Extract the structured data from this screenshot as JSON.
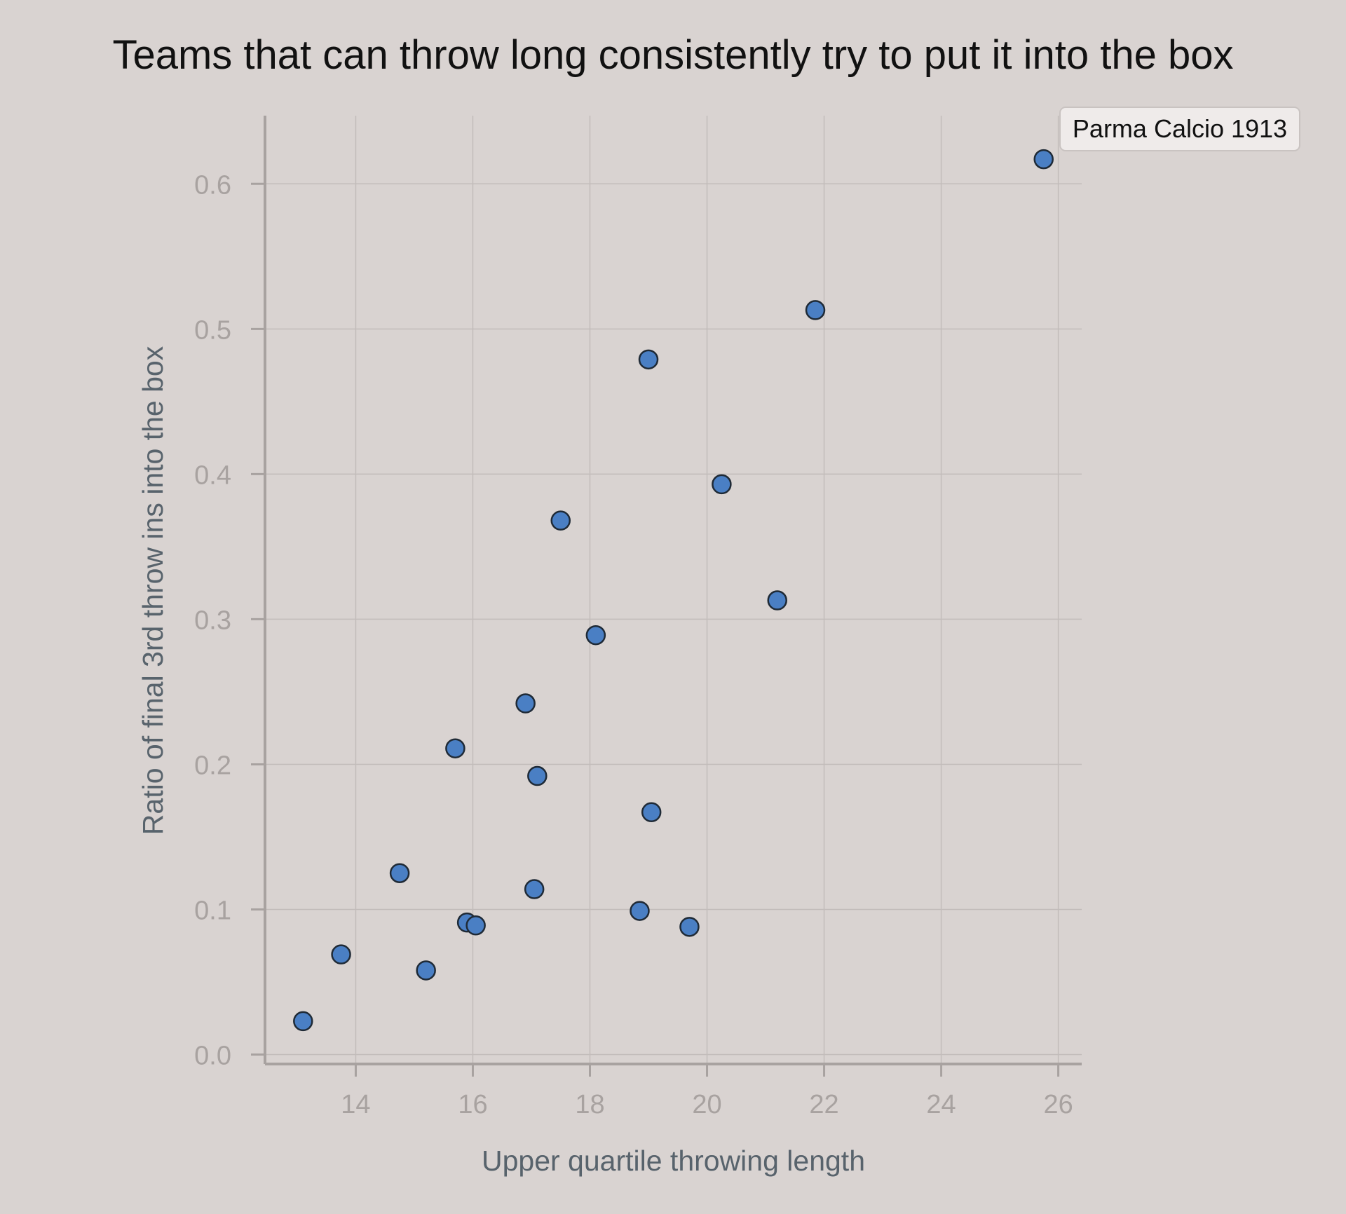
{
  "chart_data": {
    "type": "scatter",
    "title": "Teams that can throw long consistently try to put it into the box",
    "xlabel": "Upper quartile throwing length",
    "ylabel": "Ratio of final 3rd throw ins into the box",
    "xlim": [
      12.45,
      26.4
    ],
    "ylim": [
      -0.0065,
      0.647
    ],
    "x_ticks": [
      14,
      16,
      18,
      20,
      22,
      24,
      26
    ],
    "x_tick_labels": [
      "14",
      "16",
      "18",
      "20",
      "22",
      "24",
      "26"
    ],
    "y_ticks": [
      0.0,
      0.1,
      0.2,
      0.3,
      0.4,
      0.5,
      0.6
    ],
    "y_tick_labels": [
      "0.0",
      "0.1",
      "0.2",
      "0.3",
      "0.4",
      "0.5",
      "0.6"
    ],
    "grid": true,
    "point_color": "#4a7fc4",
    "point_edge_color": "#1f2a36",
    "series": [
      {
        "points": [
          {
            "x": 13.1,
            "y": 0.023
          },
          {
            "x": 13.75,
            "y": 0.069
          },
          {
            "x": 14.75,
            "y": 0.125
          },
          {
            "x": 15.2,
            "y": 0.058
          },
          {
            "x": 15.7,
            "y": 0.211
          },
          {
            "x": 15.9,
            "y": 0.091
          },
          {
            "x": 16.05,
            "y": 0.089
          },
          {
            "x": 16.9,
            "y": 0.242
          },
          {
            "x": 17.05,
            "y": 0.114
          },
          {
            "x": 17.1,
            "y": 0.192
          },
          {
            "x": 17.5,
            "y": 0.368
          },
          {
            "x": 18.1,
            "y": 0.289
          },
          {
            "x": 18.85,
            "y": 0.099
          },
          {
            "x": 19.0,
            "y": 0.479
          },
          {
            "x": 19.05,
            "y": 0.167
          },
          {
            "x": 19.7,
            "y": 0.088
          },
          {
            "x": 20.25,
            "y": 0.393
          },
          {
            "x": 21.2,
            "y": 0.313
          },
          {
            "x": 21.85,
            "y": 0.513
          },
          {
            "x": 25.75,
            "y": 0.617
          }
        ]
      }
    ],
    "annotations": [
      {
        "text": "Parma Calcio 1913",
        "x": 25.75,
        "y": 0.617
      }
    ]
  }
}
